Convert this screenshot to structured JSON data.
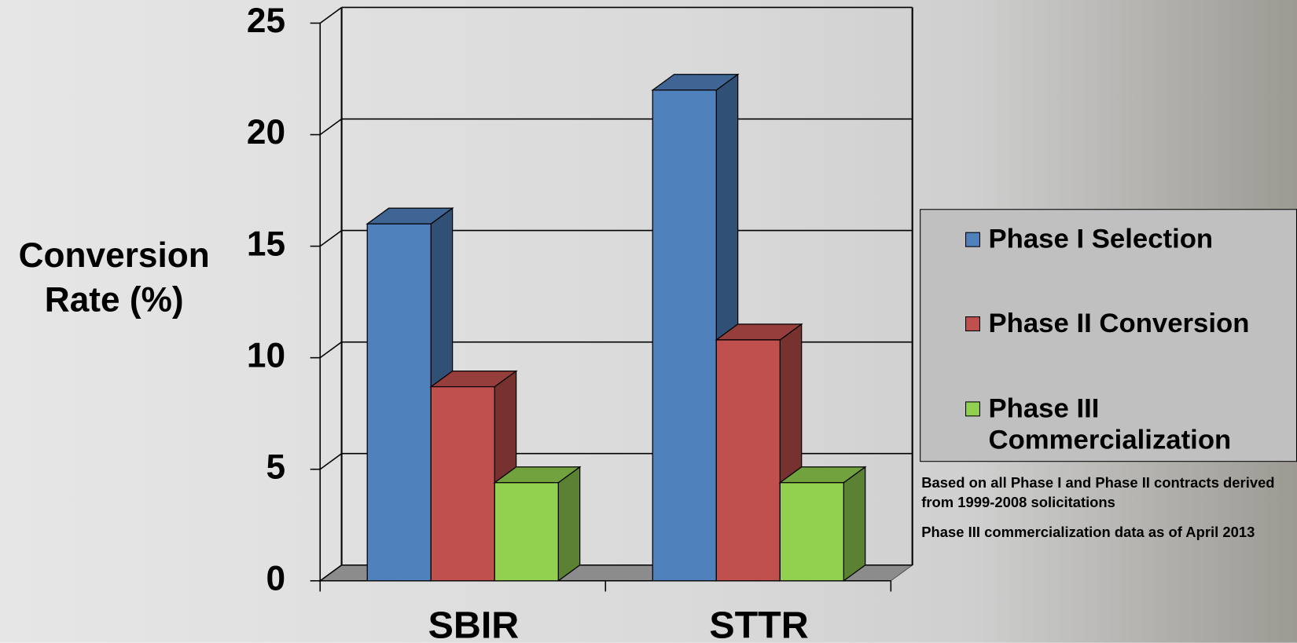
{
  "chart_data": {
    "type": "bar3d",
    "y_label": "Conversion Rate (%)",
    "categories": [
      "SBIR",
      "STTR"
    ],
    "series": [
      {
        "name": "Phase I Selection",
        "color": "#4f81bd",
        "values": [
          16.0,
          22.0
        ]
      },
      {
        "name": "Phase II Conversion",
        "color": "#c0504d",
        "values": [
          8.7,
          10.8
        ]
      },
      {
        "name": "Phase III Commercialization",
        "color": "#92d050",
        "values": [
          4.4,
          4.4
        ]
      }
    ],
    "ylim": [
      0,
      25
    ],
    "yticks": [
      0,
      5,
      10,
      15,
      20,
      25
    ],
    "grid": true,
    "legend": "right",
    "notes": [
      "Based on all Phase I and Phase II contracts derived from 1999-2008 solicitations",
      "Phase III commercialization data as of April 2013"
    ]
  }
}
